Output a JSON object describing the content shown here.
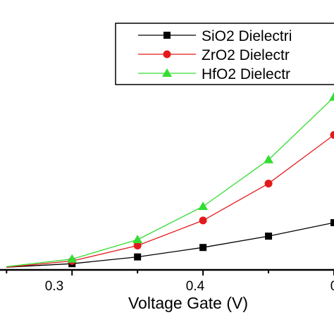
{
  "chart_data": {
    "type": "line",
    "title": "",
    "xlabel": "Voltage Gate (V)",
    "ylabel": "",
    "x": [
      0.25,
      0.3,
      0.35,
      0.4,
      0.45,
      0.5
    ],
    "x_tick_labels": [
      "0.3",
      "0.4",
      "0"
    ],
    "xlim": [
      0.245,
      0.5
    ],
    "ylim": [
      0,
      1
    ],
    "grid": false,
    "legend_position": "top-right",
    "series": [
      {
        "name": "SiO2 Dielectri",
        "color": "#000000",
        "marker": "square",
        "x": [
          0.25,
          0.3,
          0.35,
          0.4,
          0.45,
          0.5
        ],
        "values": [
          0.01,
          0.023,
          0.048,
          0.083,
          0.125,
          0.175
        ]
      },
      {
        "name": "ZrO2 Dielectr",
        "color": "#e31a1c",
        "marker": "circle",
        "x": [
          0.25,
          0.3,
          0.35,
          0.4,
          0.45,
          0.5
        ],
        "values": [
          0.01,
          0.033,
          0.09,
          0.183,
          0.32,
          0.5
        ]
      },
      {
        "name": "HfO2 Dielectr",
        "color": "#33dd33",
        "marker": "triangle",
        "x": [
          0.25,
          0.3,
          0.35,
          0.4,
          0.45,
          0.5
        ],
        "values": [
          0.012,
          0.04,
          0.112,
          0.235,
          0.408,
          0.64
        ]
      }
    ]
  }
}
